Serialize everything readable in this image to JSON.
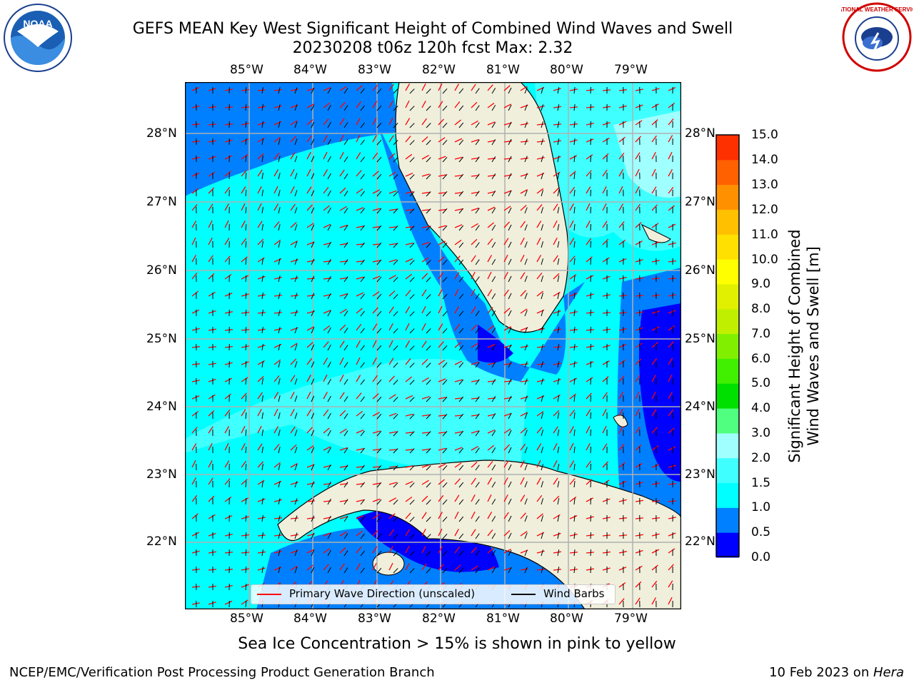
{
  "title": {
    "line1": "GEFS MEAN Key West Significant Height of Combined Wind Waves and Swell",
    "line2": "20230208 t06z 120h fcst   Max: 2.32"
  },
  "map": {
    "lon_ticks": [
      "85°W",
      "84°W",
      "83°W",
      "82°W",
      "81°W",
      "80°W",
      "79°W"
    ],
    "lat_ticks": [
      "28°N",
      "27°N",
      "26°N",
      "25°N",
      "24°N",
      "23°N",
      "22°N"
    ],
    "colors": {
      "land": "#efefdc",
      "ocean_base": "#00ffff",
      "grid": "#b0b0b0"
    }
  },
  "colorbar": {
    "label": "Significant Height of Combined Wind Waves and Swell [m]",
    "ticks": [
      "15.0",
      "14.0",
      "13.0",
      "12.0",
      "11.0",
      "10.0",
      "9.0",
      "8.0",
      "7.0",
      "6.0",
      "5.0",
      "4.0",
      "3.0",
      "2.0",
      "1.5",
      "1.0",
      "0.5",
      "0.0"
    ],
    "colors": [
      "#0000ff",
      "#0080ff",
      "#00ffff",
      "#40ffff",
      "#a0ffff",
      "#50ff80",
      "#00e000",
      "#40f000",
      "#80f000",
      "#c0f000",
      "#e0f000",
      "#ffff00",
      "#ffe000",
      "#ffc000",
      "#ff9000",
      "#ff6000",
      "#ff3000"
    ]
  },
  "legend": {
    "wave_label": "Primary Wave Direction (unscaled)",
    "wind_label": "Wind Barbs",
    "wave_color": "#ff0000",
    "wind_color": "#000000"
  },
  "note": "Sea Ice Concentration > 15% is shown in pink to yellow",
  "footer": {
    "left": "NCEP/EMC/Verification Post Processing Product Generation Branch",
    "right_date": "10 Feb 2023 on ",
    "right_host": "Hera"
  },
  "logos": {
    "left_text": "NOAA",
    "right_text": "NATIONAL WEATHER SERVICE"
  }
}
